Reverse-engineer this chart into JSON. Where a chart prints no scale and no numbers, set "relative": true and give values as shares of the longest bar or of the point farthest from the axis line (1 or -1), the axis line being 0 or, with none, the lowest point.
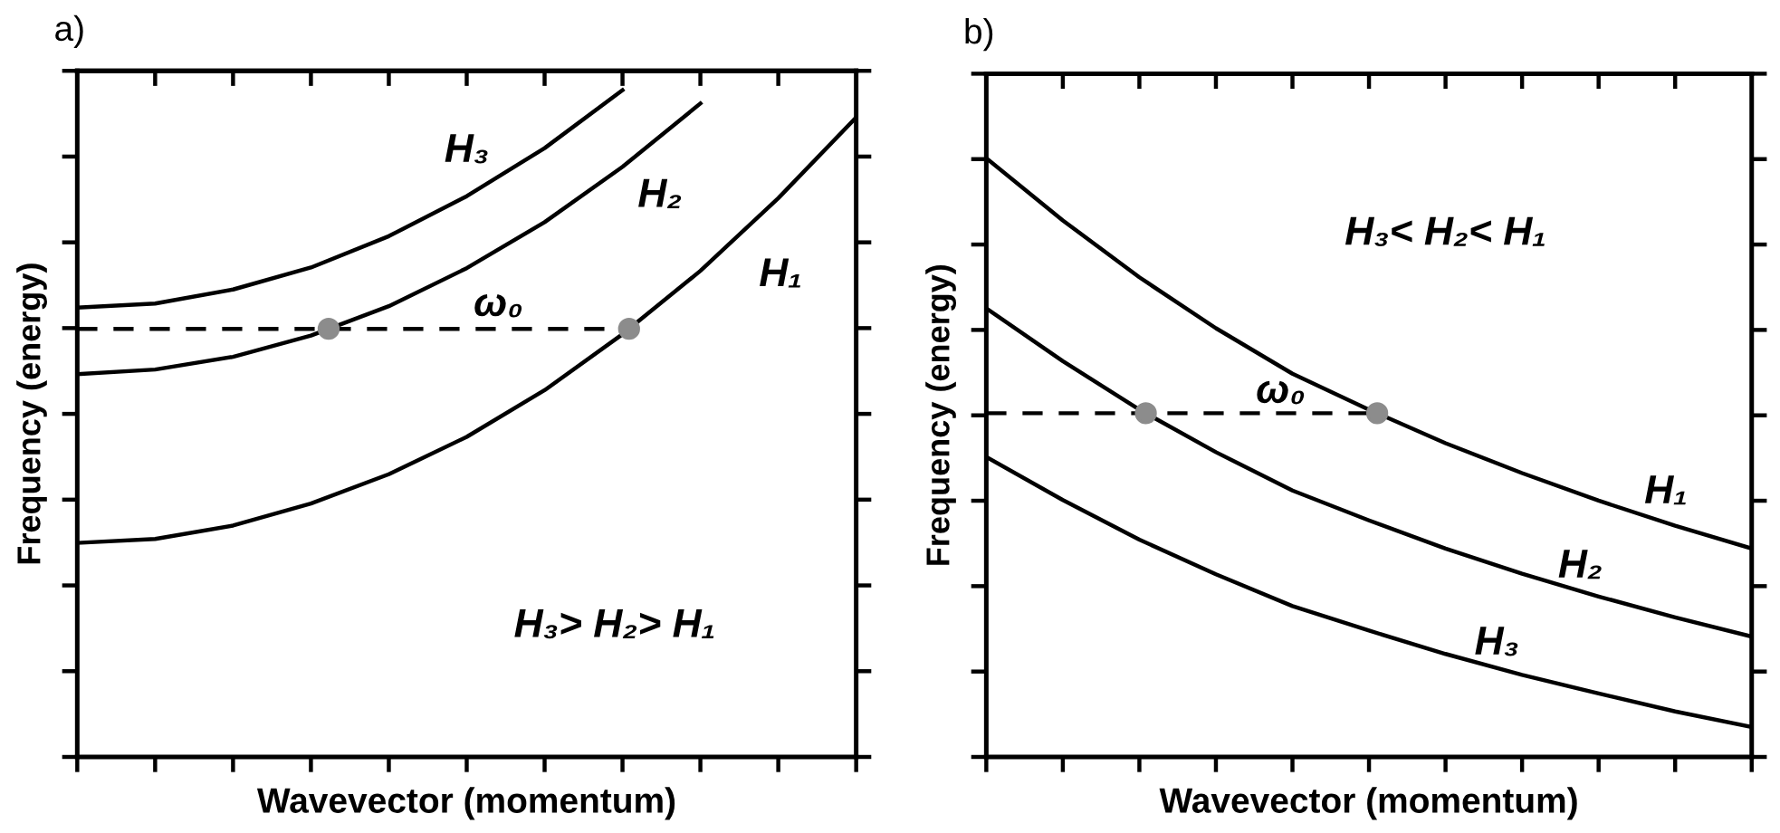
{
  "chart_data": [
    {
      "type": "line",
      "title": "a)",
      "xlabel": "Wavevector (momentum)",
      "ylabel": "Frequency (energy)",
      "relative": true,
      "tick_labels": false,
      "categories": [
        null,
        null,
        null,
        null,
        null,
        null,
        null,
        null,
        null,
        null,
        null
      ],
      "series": [
        {
          "name": "H₁",
          "color": "#000000",
          "values": [
            0.321,
            0.327,
            0.347,
            0.38,
            0.424,
            0.48,
            0.55,
            0.634,
            0.729,
            0.838,
            0.959
          ]
        },
        {
          "name": "H₂",
          "color": "#000000",
          "values": [
            0.574,
            0.581,
            0.6,
            0.632,
            0.676,
            0.733,
            0.802,
            0.885,
            0.98,
            null,
            null
          ]
        },
        {
          "name": "H₃",
          "color": "#000000",
          "values": [
            0.674,
            0.68,
            0.701,
            0.734,
            0.781,
            0.841,
            0.913,
            1,
            null,
            null,
            null
          ]
        }
      ],
      "ref_lines": [
        {
          "axis": "y",
          "value": 0.642,
          "label": "ω₀",
          "line_style": "dashed",
          "color": "#000000"
        }
      ],
      "annotations": [
        "H₃> H₂> H₁"
      ]
    },
    {
      "type": "line",
      "title": "b)",
      "xlabel": "Wavevector (momentum)",
      "ylabel": "Frequency (energy)",
      "relative": true,
      "tick_labels": false,
      "categories": [
        null,
        null,
        null,
        null,
        null,
        null,
        null,
        null,
        null,
        null,
        null
      ],
      "series": [
        {
          "name": "H₁",
          "color": "#000000",
          "values": [
            1,
            0.896,
            0.801,
            0.716,
            0.64,
            0.58,
            0.524,
            0.474,
            0.428,
            0.386,
            0.348
          ]
        },
        {
          "name": "H₂",
          "color": "#000000",
          "values": [
            0.749,
            0.661,
            0.58,
            0.509,
            0.445,
            0.395,
            0.348,
            0.306,
            0.268,
            0.233,
            0.201
          ]
        },
        {
          "name": "H₃",
          "color": "#000000",
          "values": [
            0.501,
            0.429,
            0.363,
            0.305,
            0.252,
            0.211,
            0.172,
            0.137,
            0.106,
            0.076,
            0.05
          ]
        }
      ],
      "ref_lines": [
        {
          "axis": "y",
          "value": 0.574,
          "label": "ω₀",
          "line_style": "dashed",
          "color": "#000000"
        }
      ],
      "annotations": [
        "H₃< H₂< H₁"
      ]
    }
  ]
}
